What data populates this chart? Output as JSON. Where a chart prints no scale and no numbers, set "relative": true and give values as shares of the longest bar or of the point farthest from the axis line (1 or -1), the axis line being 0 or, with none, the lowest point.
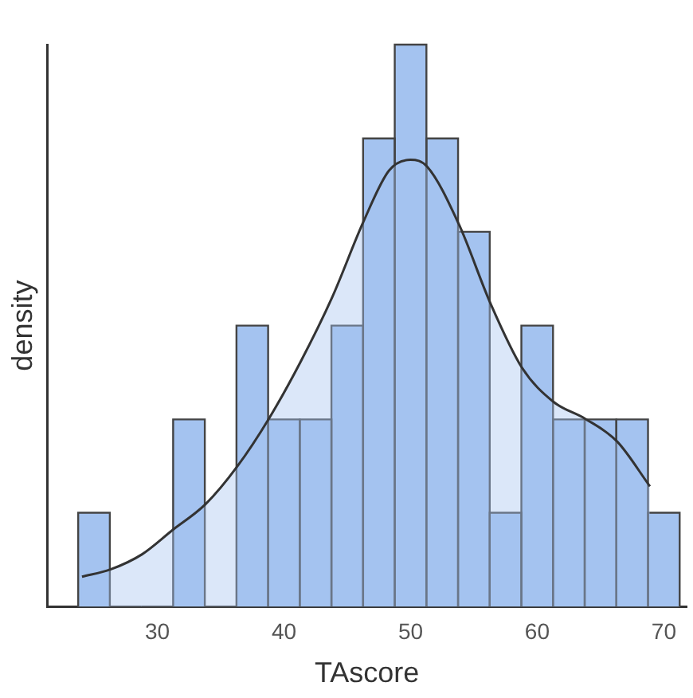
{
  "chart_data": {
    "type": "histogram",
    "xlabel": "TAscore",
    "ylabel": "density",
    "relative": true,
    "bins": [
      23.75,
      26.25,
      28.75,
      31.25,
      33.75,
      36.25,
      38.75,
      41.25,
      43.75,
      46.25,
      48.75,
      51.25,
      53.75,
      56.25,
      58.75,
      61.25,
      63.75,
      66.25,
      68.75,
      71.25
    ],
    "xlim": [
      21.3,
      71.8
    ],
    "xticks": [
      30,
      40,
      50,
      60,
      70
    ],
    "series": [
      {
        "color": "#a4c3f0",
        "values": [
          0.167,
          0,
          0,
          0.333,
          0,
          0.5,
          0.333,
          0.333,
          0.5,
          0.833,
          1,
          0.833,
          0.667,
          0.167,
          0.5,
          0.333,
          0.333,
          0.333,
          0.167
        ]
      },
      {
        "type": "area",
        "color": "#333333",
        "x": [
          24.05,
          26.3,
          28.8,
          31.2,
          33.8,
          36.3,
          38.8,
          41.3,
          43.8,
          46.3,
          48.3,
          50.0,
          51.3,
          53.8,
          56.3,
          58.8,
          61.3,
          63.8,
          66.3,
          68.9
        ],
        "values": [
          0.053,
          0.066,
          0.093,
          0.136,
          0.182,
          0.249,
          0.334,
          0.435,
          0.55,
          0.686,
          0.776,
          0.795,
          0.783,
          0.681,
          0.54,
          0.425,
          0.364,
          0.334,
          0.294,
          0.214
        ]
      }
    ]
  }
}
